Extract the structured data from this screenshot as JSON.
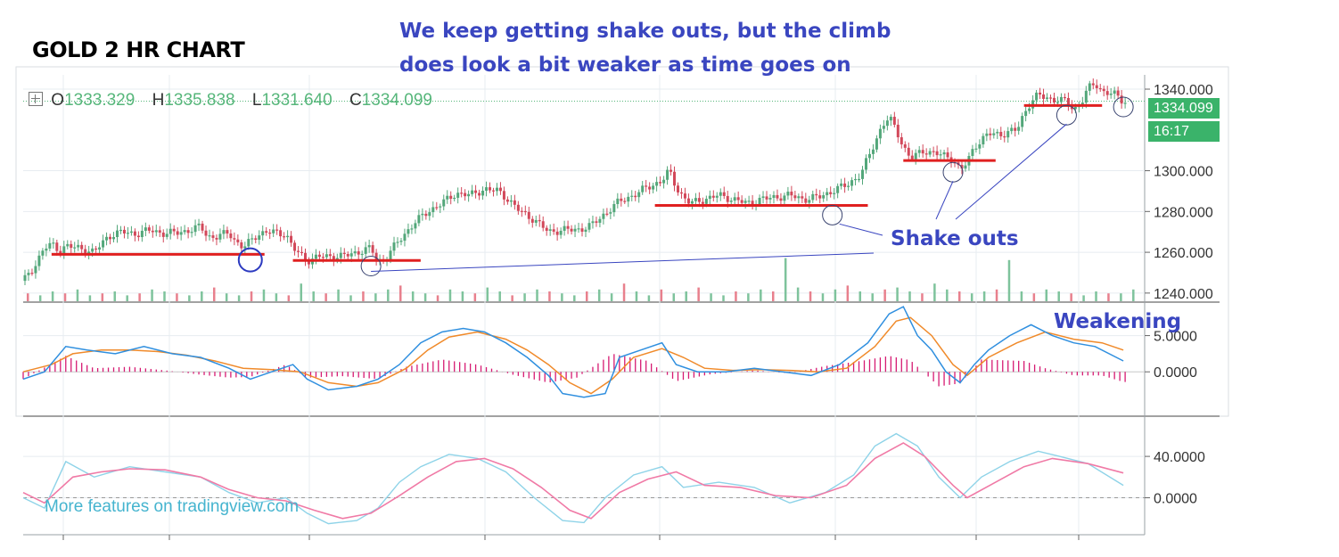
{
  "chart_title": "GOLD 2 HR CHART",
  "headline": {
    "line1": "We keep getting shake outs, but the climb",
    "line2": "does look a bit weaker as time goes on"
  },
  "ohlc": {
    "o_label": "O",
    "o_value": "1333.329",
    "h_label": "H",
    "h_value": "1335.838",
    "l_label": "L",
    "l_value": "1331.640",
    "c_label": "C",
    "c_value": "1334.099"
  },
  "price_tag": {
    "last": "1334.099",
    "countdown": "16:17"
  },
  "annotations": {
    "shake_outs": "Shake outs",
    "weakening": "Weakening"
  },
  "watermark": "More features on tradingview.com",
  "colors": {
    "up": "#53a77a",
    "down": "#d2485a",
    "support": "#e02020",
    "annot": "#3a46c0",
    "macd": "#2f8fdf",
    "signal": "#f08a2a",
    "hist": "#d61a72",
    "stoch_k": "#8ed3e8",
    "stoch_d": "#f07aa6",
    "grid": "#e7ecf1"
  },
  "chart_data": [
    {
      "type": "candlestick",
      "title": "GOLD 2 HR CHART",
      "ylim": [
        1236,
        1347
      ],
      "yticks": [
        {
          "value": 1340,
          "label": "1340.000"
        },
        {
          "value": 1300,
          "label": "1300.000"
        },
        {
          "value": 1280,
          "label": "1280.000"
        },
        {
          "value": 1260,
          "label": "1260.000"
        },
        {
          "value": 1240,
          "label": "1240.000"
        }
      ],
      "close_path": [
        [
          0,
          1246
        ],
        [
          2,
          1250
        ],
        [
          4,
          1256
        ],
        [
          6,
          1262
        ],
        [
          8,
          1264
        ],
        [
          10,
          1261
        ],
        [
          12,
          1263
        ],
        [
          16,
          1262
        ],
        [
          20,
          1260
        ],
        [
          24,
          1268
        ],
        [
          28,
          1270
        ],
        [
          32,
          1269
        ],
        [
          36,
          1271
        ],
        [
          40,
          1269
        ],
        [
          44,
          1270
        ],
        [
          48,
          1271
        ],
        [
          50,
          1273
        ],
        [
          52,
          1268
        ],
        [
          54,
          1267
        ],
        [
          58,
          1270
        ],
        [
          60,
          1265
        ],
        [
          62,
          1262
        ],
        [
          66,
          1269
        ],
        [
          70,
          1270
        ],
        [
          74,
          1269
        ],
        [
          76,
          1262
        ],
        [
          78,
          1259
        ],
        [
          80,
          1256
        ],
        [
          84,
          1258
        ],
        [
          90,
          1258
        ],
        [
          94,
          1260
        ],
        [
          98,
          1262
        ],
        [
          100,
          1255
        ],
        [
          102,
          1257
        ],
        [
          106,
          1266
        ],
        [
          110,
          1274
        ],
        [
          114,
          1280
        ],
        [
          118,
          1284
        ],
        [
          122,
          1289
        ],
        [
          126,
          1288
        ],
        [
          130,
          1291
        ],
        [
          134,
          1290
        ],
        [
          136,
          1287
        ],
        [
          140,
          1280
        ],
        [
          144,
          1276
        ],
        [
          148,
          1270
        ],
        [
          152,
          1271
        ],
        [
          156,
          1271
        ],
        [
          160,
          1273
        ],
        [
          164,
          1279
        ],
        [
          168,
          1285
        ],
        [
          172,
          1288
        ],
        [
          176,
          1292
        ],
        [
          180,
          1295
        ],
        [
          182,
          1300
        ],
        [
          184,
          1292
        ],
        [
          186,
          1287
        ],
        [
          188,
          1284
        ],
        [
          192,
          1286
        ],
        [
          196,
          1288
        ],
        [
          200,
          1286
        ],
        [
          204,
          1284
        ],
        [
          208,
          1286
        ],
        [
          212,
          1287
        ],
        [
          216,
          1288
        ],
        [
          220,
          1286
        ],
        [
          224,
          1287
        ],
        [
          228,
          1290
        ],
        [
          232,
          1293
        ],
        [
          236,
          1298
        ],
        [
          238,
          1306
        ],
        [
          240,
          1314
        ],
        [
          242,
          1322
        ],
        [
          244,
          1326
        ],
        [
          246,
          1320
        ],
        [
          248,
          1312
        ],
        [
          250,
          1306
        ],
        [
          254,
          1310
        ],
        [
          258,
          1308
        ],
        [
          262,
          1306
        ],
        [
          264,
          1300
        ],
        [
          266,
          1304
        ],
        [
          268,
          1312
        ],
        [
          272,
          1318
        ],
        [
          276,
          1318
        ],
        [
          280,
          1320
        ],
        [
          282,
          1328
        ],
        [
          284,
          1334
        ],
        [
          286,
          1337
        ],
        [
          290,
          1335
        ],
        [
          294,
          1334
        ],
        [
          296,
          1330
        ],
        [
          298,
          1333
        ],
        [
          300,
          1340
        ],
        [
          302,
          1343
        ],
        [
          304,
          1339
        ],
        [
          306,
          1338
        ],
        [
          308,
          1337
        ],
        [
          310,
          1334
        ]
      ],
      "volume": [
        4,
        3,
        5,
        4,
        6,
        3,
        4,
        5,
        3,
        4,
        6,
        5,
        4,
        3,
        5,
        7,
        4,
        3,
        5,
        6,
        4,
        3,
        9,
        5,
        4,
        6,
        3,
        5,
        4,
        6,
        8,
        5,
        4,
        3,
        6,
        5,
        4,
        7,
        5,
        3,
        4,
        6,
        5,
        4,
        3,
        5,
        6,
        4,
        9,
        5,
        3,
        6,
        4,
        5,
        7,
        4,
        3,
        5,
        4,
        6,
        5,
        22,
        7,
        5,
        4,
        6,
        8,
        5,
        4,
        6,
        7,
        5,
        4,
        9,
        6,
        5,
        4,
        5,
        6,
        21,
        5,
        4,
        6,
        5,
        4,
        3,
        5,
        4,
        4,
        6
      ],
      "support_lines": [
        {
          "x1": 8,
          "x2": 68,
          "y": 1259
        },
        {
          "x1": 76,
          "x2": 112,
          "y": 1256
        },
        {
          "x1": 178,
          "x2": 238,
          "y": 1283
        },
        {
          "x1": 248,
          "x2": 274,
          "y": 1305
        },
        {
          "x1": 282,
          "x2": 304,
          "y": 1332
        }
      ],
      "marked_lows": [
        {
          "x": 64,
          "y": 1258
        },
        {
          "x": 98,
          "y": 1255
        },
        {
          "x": 228,
          "y": 1280
        },
        {
          "x": 262,
          "y": 1301
        },
        {
          "x": 294,
          "y": 1329
        },
        {
          "x": 310,
          "y": 1333
        }
      ]
    },
    {
      "type": "line",
      "name": "MACD",
      "ylim": [
        -6,
        9.5
      ],
      "yticks": [
        {
          "value": 5,
          "label": "5.0000"
        },
        {
          "value": 0,
          "label": "0.0000"
        }
      ],
      "macd": [
        [
          0,
          -1
        ],
        [
          6,
          0
        ],
        [
          12,
          3.5
        ],
        [
          18,
          3
        ],
        [
          26,
          2.5
        ],
        [
          34,
          3.5
        ],
        [
          42,
          2.5
        ],
        [
          50,
          2
        ],
        [
          58,
          0.5
        ],
        [
          64,
          -1
        ],
        [
          70,
          0
        ],
        [
          76,
          1
        ],
        [
          80,
          -1
        ],
        [
          86,
          -2.5
        ],
        [
          94,
          -2
        ],
        [
          100,
          -1
        ],
        [
          106,
          1
        ],
        [
          112,
          4
        ],
        [
          118,
          5.5
        ],
        [
          124,
          6
        ],
        [
          130,
          5.5
        ],
        [
          136,
          4
        ],
        [
          142,
          2
        ],
        [
          148,
          -0.5
        ],
        [
          152,
          -3
        ],
        [
          158,
          -3.5
        ],
        [
          164,
          -3
        ],
        [
          168,
          2
        ],
        [
          174,
          3
        ],
        [
          180,
          4
        ],
        [
          184,
          1
        ],
        [
          190,
          0
        ],
        [
          198,
          0
        ],
        [
          206,
          0.5
        ],
        [
          214,
          0
        ],
        [
          222,
          -0.5
        ],
        [
          230,
          1
        ],
        [
          238,
          4
        ],
        [
          244,
          8
        ],
        [
          248,
          9
        ],
        [
          252,
          5
        ],
        [
          256,
          3
        ],
        [
          260,
          0
        ],
        [
          264,
          -1.5
        ],
        [
          268,
          1
        ],
        [
          272,
          3
        ],
        [
          278,
          5
        ],
        [
          284,
          6.5
        ],
        [
          290,
          5
        ],
        [
          296,
          4
        ],
        [
          302,
          3.5
        ],
        [
          310,
          1.5
        ]
      ],
      "signal": [
        [
          0,
          0
        ],
        [
          8,
          1
        ],
        [
          14,
          2.5
        ],
        [
          22,
          3
        ],
        [
          30,
          3
        ],
        [
          38,
          2.8
        ],
        [
          46,
          2.3
        ],
        [
          54,
          1.5
        ],
        [
          62,
          0.5
        ],
        [
          70,
          0.3
        ],
        [
          78,
          0
        ],
        [
          86,
          -1.5
        ],
        [
          94,
          -2
        ],
        [
          100,
          -1.5
        ],
        [
          108,
          0.5
        ],
        [
          114,
          3
        ],
        [
          120,
          4.8
        ],
        [
          128,
          5.5
        ],
        [
          136,
          4.5
        ],
        [
          142,
          3
        ],
        [
          148,
          1
        ],
        [
          154,
          -1.5
        ],
        [
          160,
          -3
        ],
        [
          166,
          -1
        ],
        [
          172,
          2
        ],
        [
          180,
          3.2
        ],
        [
          186,
          2
        ],
        [
          192,
          0.5
        ],
        [
          200,
          0.2
        ],
        [
          208,
          0.3
        ],
        [
          216,
          0.2
        ],
        [
          224,
          0
        ],
        [
          232,
          0.5
        ],
        [
          240,
          3.5
        ],
        [
          246,
          7
        ],
        [
          250,
          7.5
        ],
        [
          256,
          5
        ],
        [
          262,
          1
        ],
        [
          266,
          -0.5
        ],
        [
          272,
          2
        ],
        [
          280,
          4
        ],
        [
          288,
          5.5
        ],
        [
          296,
          4.5
        ],
        [
          304,
          4
        ],
        [
          310,
          3
        ]
      ],
      "hist": [
        [
          0,
          -1
        ],
        [
          12,
          2.2
        ],
        [
          20,
          0.5
        ],
        [
          30,
          0.7
        ],
        [
          40,
          0.2
        ],
        [
          50,
          -0.4
        ],
        [
          58,
          -0.8
        ],
        [
          64,
          -0.7
        ],
        [
          74,
          1
        ],
        [
          80,
          -0.8
        ],
        [
          90,
          -0.6
        ],
        [
          100,
          -1
        ],
        [
          108,
          0.7
        ],
        [
          118,
          1.7
        ],
        [
          128,
          1
        ],
        [
          138,
          -0.4
        ],
        [
          148,
          -1.5
        ],
        [
          156,
          -0.8
        ],
        [
          166,
          2.5
        ],
        [
          176,
          1.5
        ],
        [
          184,
          -1.3
        ],
        [
          194,
          -0.3
        ],
        [
          206,
          0.2
        ],
        [
          216,
          -0.2
        ],
        [
          226,
          0.8
        ],
        [
          236,
          1.5
        ],
        [
          244,
          2.2
        ],
        [
          250,
          1.6
        ],
        [
          258,
          -2
        ],
        [
          264,
          -1.6
        ],
        [
          270,
          1.7
        ],
        [
          282,
          1.5
        ],
        [
          288,
          0.5
        ],
        [
          296,
          -0.5
        ],
        [
          304,
          -0.5
        ],
        [
          310,
          -1.4
        ]
      ]
    },
    {
      "type": "line",
      "name": "Stochastic RSI",
      "ylim": [
        -34,
        78
      ],
      "yticks": [
        {
          "value": 40,
          "label": "40.0000"
        },
        {
          "value": 0,
          "label": "0.0000"
        }
      ],
      "k": [
        [
          0,
          0
        ],
        [
          6,
          -10
        ],
        [
          12,
          35
        ],
        [
          20,
          20
        ],
        [
          30,
          30
        ],
        [
          40,
          25
        ],
        [
          50,
          20
        ],
        [
          58,
          5
        ],
        [
          66,
          -5
        ],
        [
          74,
          0
        ],
        [
          80,
          -15
        ],
        [
          86,
          -25
        ],
        [
          94,
          -22
        ],
        [
          100,
          -10
        ],
        [
          106,
          15
        ],
        [
          112,
          30
        ],
        [
          120,
          42
        ],
        [
          128,
          38
        ],
        [
          136,
          25
        ],
        [
          144,
          0
        ],
        [
          152,
          -22
        ],
        [
          158,
          -24
        ],
        [
          164,
          0
        ],
        [
          172,
          22
        ],
        [
          180,
          30
        ],
        [
          186,
          10
        ],
        [
          196,
          15
        ],
        [
          206,
          10
        ],
        [
          216,
          -5
        ],
        [
          226,
          5
        ],
        [
          234,
          22
        ],
        [
          240,
          50
        ],
        [
          246,
          62
        ],
        [
          252,
          50
        ],
        [
          258,
          20
        ],
        [
          264,
          0
        ],
        [
          270,
          20
        ],
        [
          278,
          35
        ],
        [
          286,
          45
        ],
        [
          292,
          40
        ],
        [
          300,
          33
        ],
        [
          310,
          12
        ]
      ],
      "d": [
        [
          0,
          5
        ],
        [
          6,
          -5
        ],
        [
          14,
          20
        ],
        [
          22,
          25
        ],
        [
          30,
          28
        ],
        [
          40,
          27
        ],
        [
          50,
          20
        ],
        [
          58,
          8
        ],
        [
          66,
          0
        ],
        [
          74,
          -3
        ],
        [
          82,
          -12
        ],
        [
          90,
          -20
        ],
        [
          98,
          -15
        ],
        [
          106,
          2
        ],
        [
          114,
          20
        ],
        [
          122,
          35
        ],
        [
          130,
          38
        ],
        [
          138,
          28
        ],
        [
          146,
          10
        ],
        [
          154,
          -12
        ],
        [
          160,
          -20
        ],
        [
          168,
          5
        ],
        [
          176,
          18
        ],
        [
          184,
          25
        ],
        [
          192,
          12
        ],
        [
          202,
          10
        ],
        [
          212,
          2
        ],
        [
          222,
          0
        ],
        [
          232,
          12
        ],
        [
          240,
          38
        ],
        [
          248,
          53
        ],
        [
          254,
          40
        ],
        [
          262,
          12
        ],
        [
          266,
          0
        ],
        [
          274,
          15
        ],
        [
          282,
          30
        ],
        [
          290,
          38
        ],
        [
          300,
          33
        ],
        [
          310,
          24
        ]
      ],
      "dashed_zero": true
    }
  ]
}
